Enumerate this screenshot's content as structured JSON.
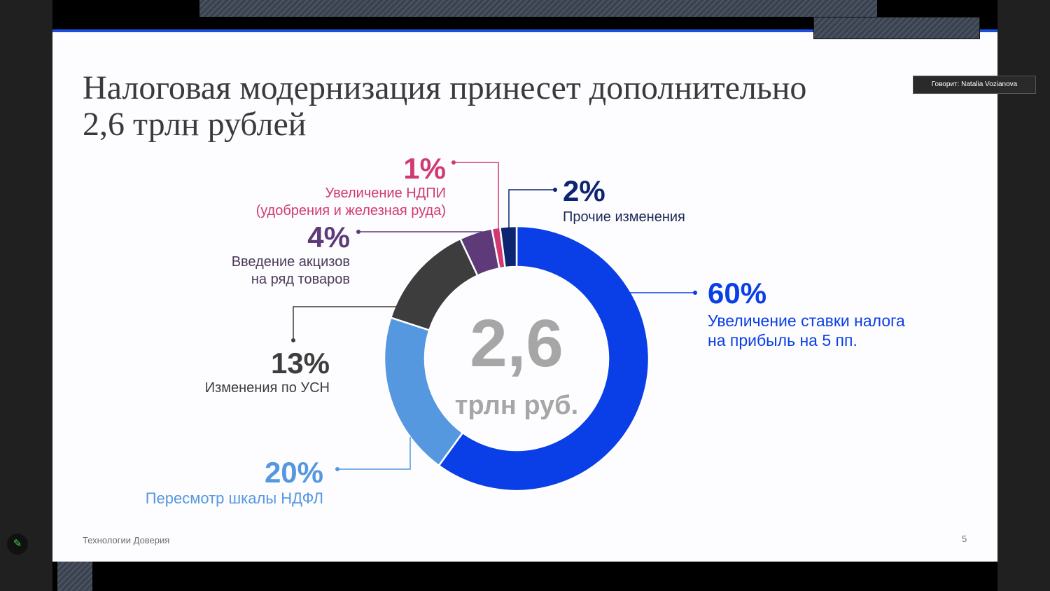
{
  "window": {
    "speaker_label": "Говорит: Natalia Vozianova"
  },
  "slide": {
    "title_line1": "Налоговая модернизация принесет дополнительно",
    "title_line2": "2,6 трлн рублей",
    "footer": "Технологии Доверия",
    "page_number": "5"
  },
  "chart_data": {
    "type": "pie",
    "variant": "donut",
    "center_value": "2,6",
    "center_unit": "трлн руб.",
    "slices": [
      {
        "pct_label": "60%",
        "value": 60,
        "desc_line1": "Увеличение ставки налога",
        "desc_line2": "на прибыль на 5 пп.",
        "color": "#0a3fe8"
      },
      {
        "pct_label": "20%",
        "value": 20,
        "desc_line1": "Пересмотр шкалы НДФЛ",
        "desc_line2": "",
        "color": "#5598e0"
      },
      {
        "pct_label": "13%",
        "value": 13,
        "desc_line1": "Изменения по УСН",
        "desc_line2": "",
        "color": "#3d3d3d"
      },
      {
        "pct_label": "4%",
        "value": 4,
        "desc_line1": "Введение акцизов",
        "desc_line2": "на ряд товаров",
        "color": "#5e3a78"
      },
      {
        "pct_label": "1%",
        "value": 1,
        "desc_line1": "Увеличение НДПИ",
        "desc_line2": "(удобрения и железная руда)",
        "color": "#d03a72"
      },
      {
        "pct_label": "2%",
        "value": 2,
        "desc_line1": "Прочие изменения",
        "desc_line2": "",
        "color": "#0d2470"
      }
    ]
  }
}
